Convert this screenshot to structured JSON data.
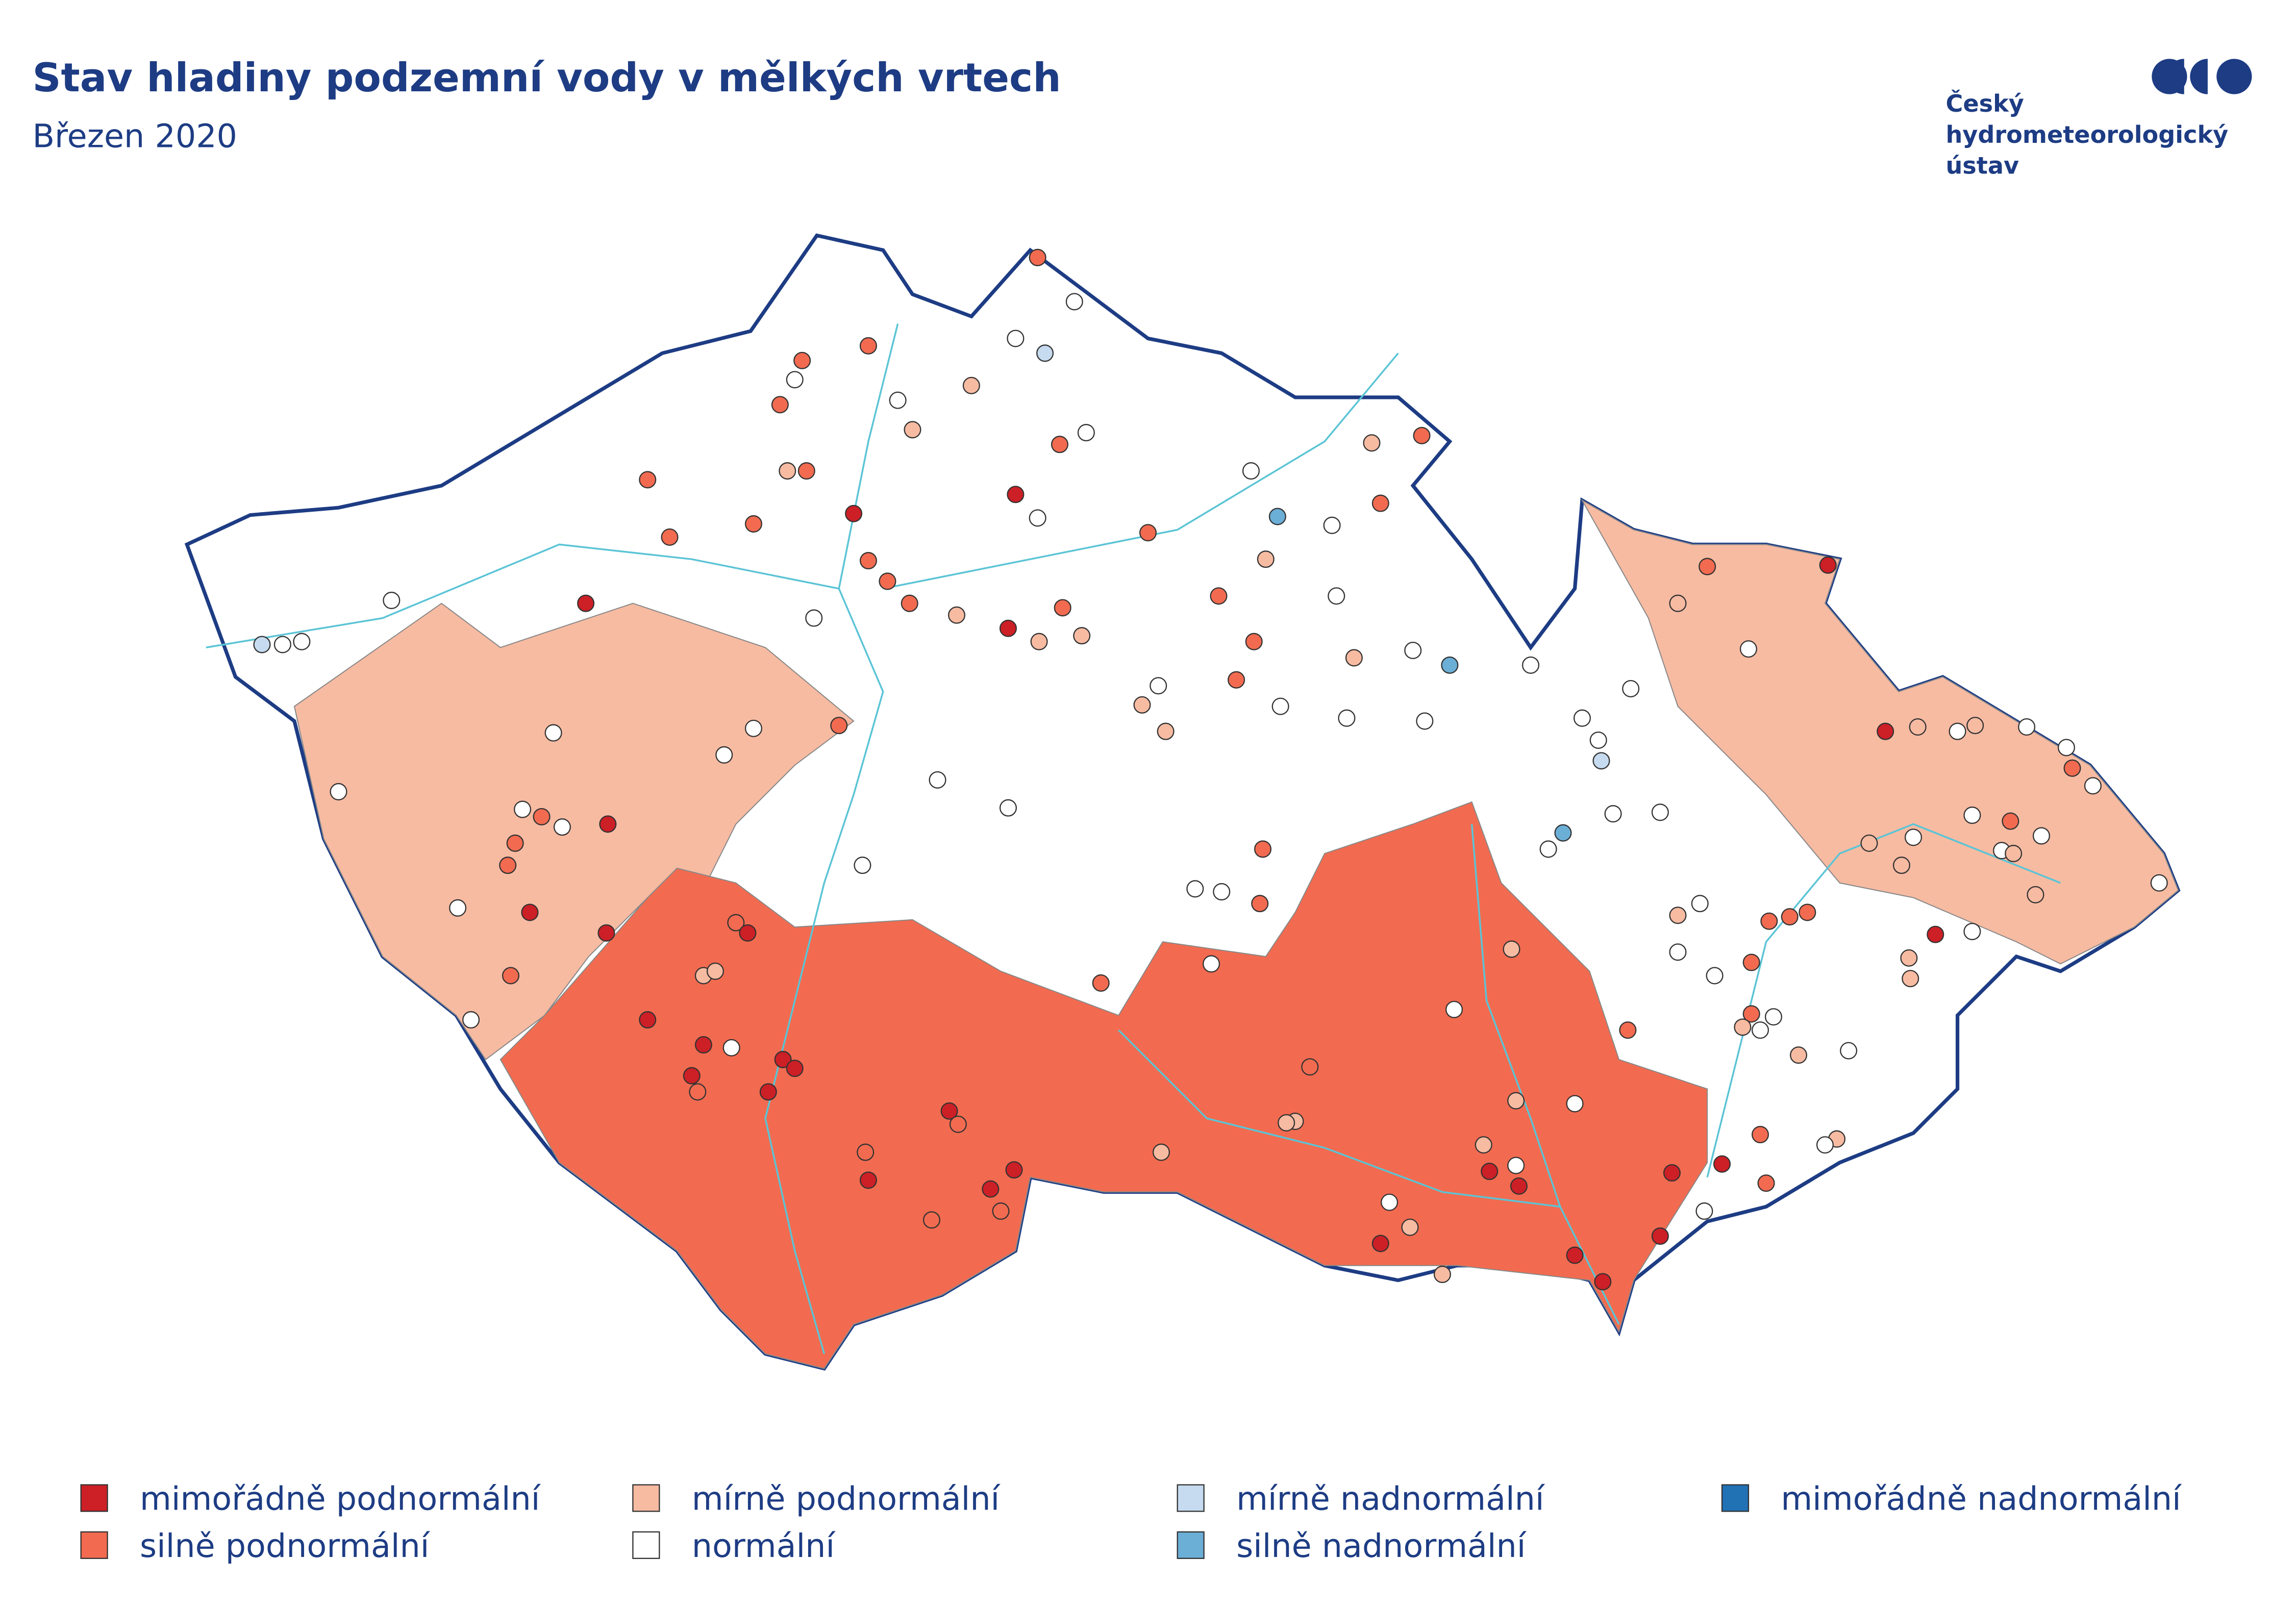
{
  "header": {
    "title": "Stav hladiny podzemní vody v mělkých vrtech",
    "subtitle": "Březen 2020"
  },
  "logo": {
    "lines": [
      "Český",
      "hydrometeorologický",
      "ústav"
    ]
  },
  "legend": {
    "items": [
      {
        "label": "mimořádně podnormální",
        "color": "#cc1f26"
      },
      {
        "label": "silně podnormální",
        "color": "#f26b50"
      },
      {
        "label": "mírně podnormální",
        "color": "#f7bba2"
      },
      {
        "label": "normální",
        "color": "#ffffff"
      },
      {
        "label": "mírně nadnormální",
        "color": "#c6dbef"
      },
      {
        "label": "silně nadnormální",
        "color": "#6baed6"
      },
      {
        "label": "mimořádně nadnormální",
        "color": "#2171b5"
      }
    ]
  }
}
